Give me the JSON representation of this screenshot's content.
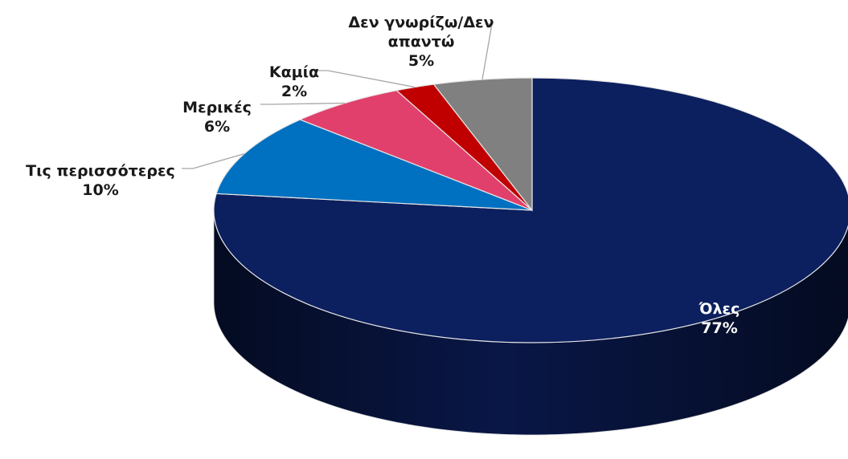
{
  "chart_data": {
    "type": "pie3d",
    "categories": [
      "Όλες",
      "Τις περισσότερες",
      "Μερικές",
      "Καμία",
      "Δεν γνωρίζω/Δεν απαντώ"
    ],
    "values": [
      77,
      10,
      6,
      2,
      5
    ],
    "value_labels": [
      "77%",
      "10%",
      "6%",
      "2%",
      "5%"
    ],
    "colors": [
      "#0c1f5e",
      "#0070c0",
      "#e0406b",
      "#c00000",
      "#808080"
    ]
  }
}
